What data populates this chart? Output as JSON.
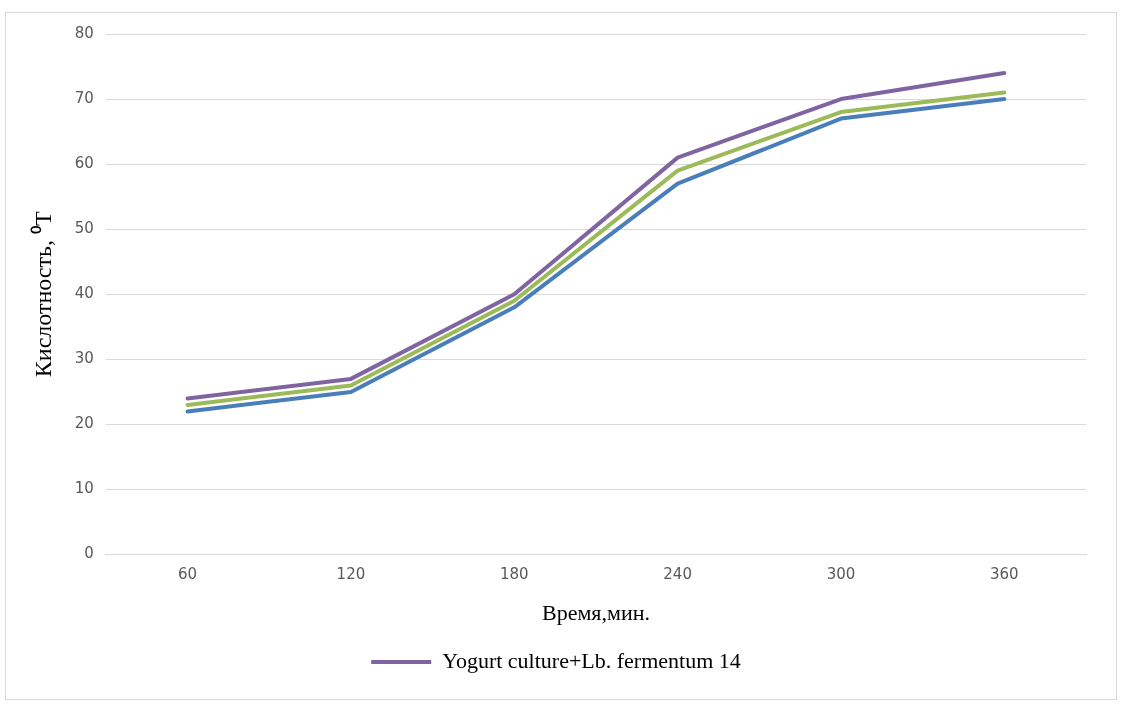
{
  "chart_data": {
    "type": "line",
    "xlabel": "Время,мин.",
    "ylabel": "Кислотность, ⁰T",
    "categories": [
      "60",
      "120",
      "180",
      "240",
      "300",
      "360"
    ],
    "ylim": [
      0,
      80
    ],
    "yticks": [
      0,
      10,
      20,
      30,
      40,
      50,
      60,
      70,
      80
    ],
    "grid": "y",
    "legend": "bottom",
    "marker": "none",
    "series": [
      {
        "color": "#4a7ebb",
        "values": [
          22,
          25,
          38,
          57,
          67,
          70
        ]
      },
      {
        "color": "#9bbb59",
        "values": [
          23,
          26,
          39,
          59,
          68,
          71
        ]
      },
      {
        "name": "Yogurt culture+Lb. fermentum 14",
        "color": "#8064a2",
        "values": [
          24,
          27,
          40,
          61,
          70,
          74
        ]
      }
    ]
  }
}
